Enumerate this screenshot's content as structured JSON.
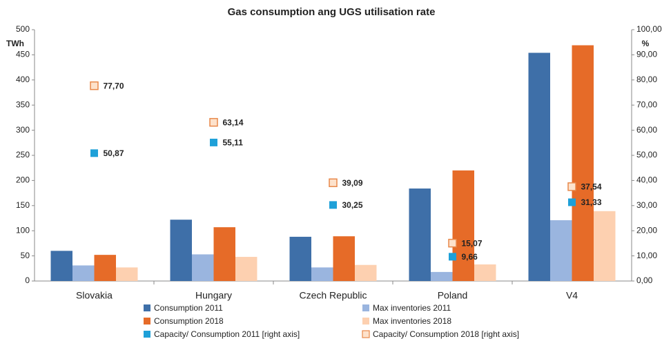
{
  "chart_data": {
    "type": "bar",
    "title": "Gas consumption ang UGS utilisation rate",
    "y_label": "TWh",
    "y2_label": "%",
    "categories": [
      "Slovakia",
      "Hungary",
      "Czech Republic",
      "Poland",
      "V4"
    ],
    "series": [
      {
        "name": "Consumption 2011",
        "color": "#3e6fa8",
        "values": [
          60,
          122,
          88,
          184,
          454
        ]
      },
      {
        "name": "Max inventories 2011",
        "color": "#9ab5df",
        "values": [
          31,
          53,
          27,
          18,
          121
        ]
      },
      {
        "name": "Consumption 2018",
        "color": "#e66b28",
        "values": [
          52,
          107,
          89,
          220,
          469
        ]
      },
      {
        "name": "Max inventories 2018",
        "color": "#fdd0b0",
        "values": [
          27,
          48,
          32,
          33,
          139
        ]
      },
      {
        "name": "Capacity/ Consumption 2011 [right axis]",
        "type": "scatter",
        "axis": "y2",
        "color": "#1ea0d8",
        "filled": true,
        "values": [
          50.87,
          55.11,
          30.25,
          9.66,
          31.33
        ],
        "value_labels": [
          "50,87",
          "55,11",
          "30,25",
          "9,66",
          "31,33"
        ]
      },
      {
        "name": "Capacity/ Consumption 2018 [right axis]",
        "type": "scatter",
        "axis": "y2",
        "color": "#e8884a",
        "filled": false,
        "values": [
          77.7,
          63.14,
          39.09,
          15.07,
          37.54
        ],
        "value_labels": [
          "77,70",
          "63,14",
          "39,09",
          "15,07",
          "37,54"
        ]
      }
    ],
    "ylim": [
      0,
      500
    ],
    "yticks": [
      0,
      50,
      100,
      150,
      200,
      250,
      300,
      350,
      400,
      450,
      500
    ],
    "y2lim": [
      0,
      100
    ],
    "y2ticks": [
      {
        "value": 0,
        "label": "0,00"
      },
      {
        "value": 10,
        "label": "10,00"
      },
      {
        "value": 20,
        "label": "20,00"
      },
      {
        "value": 30,
        "label": "30,00"
      },
      {
        "value": 40,
        "label": "40,00"
      },
      {
        "value": 50,
        "label": "50,00"
      },
      {
        "value": 60,
        "label": "60,00"
      },
      {
        "value": 70,
        "label": "70,00"
      },
      {
        "value": 80,
        "label": "80,00"
      },
      {
        "value": 90,
        "label": "90,00"
      },
      {
        "value": 100,
        "label": "100,00"
      }
    ],
    "grid": false
  }
}
